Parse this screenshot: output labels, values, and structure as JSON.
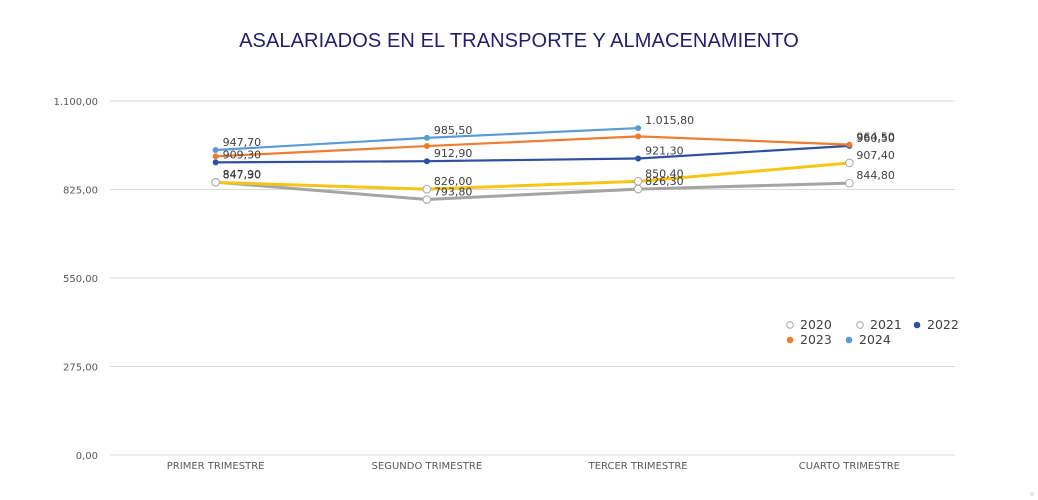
{
  "chart_data": {
    "type": "line",
    "title": "ASALARIADOS EN EL TRANSPORTE Y ALMACENAMIENTO",
    "xlabel": "",
    "ylabel": "",
    "categories": [
      "PRIMER TRIMESTRE",
      "SEGUNDO TRIMESTRE",
      "TERCER TRIMESTRE",
      "CUARTO TRIMESTRE"
    ],
    "ylim": [
      0,
      1100
    ],
    "yticks": [
      0,
      275,
      550,
      825,
      1100
    ],
    "ytick_labels": [
      "0,00",
      "275,00",
      "550,00",
      "825,00",
      "1.100,00"
    ],
    "grid": true,
    "legend_position": "right",
    "series": [
      {
        "name": "2020",
        "color": "#a5a5a5",
        "marker": "hollow-circle",
        "values": [
          847.9,
          793.8,
          826.3,
          844.8
        ],
        "labels": [
          "847,90",
          "793,80",
          "826,30",
          "844,80"
        ]
      },
      {
        "name": "2021",
        "color": "#f5c518",
        "marker": "hollow-circle",
        "values": [
          847.3,
          826.0,
          850.4,
          907.4
        ],
        "labels": [
          "847,30",
          "826,00",
          "850,40",
          "907,40"
        ]
      },
      {
        "name": "2022",
        "color": "#2f4fa0",
        "marker": "dot",
        "values": [
          909.3,
          912.9,
          921.3,
          960.5
        ],
        "labels": [
          "909,30",
          "912,90",
          "921,30",
          "960,50"
        ]
      },
      {
        "name": "2023",
        "color": "#ed7d31",
        "marker": "dot",
        "values": [
          928.0,
          960.0,
          990.0,
          964.5
        ],
        "labels": [
          "",
          "",
          "",
          "964,50"
        ]
      },
      {
        "name": "2024",
        "color": "#5b9bd5",
        "marker": "dot",
        "values": [
          947.7,
          985.5,
          1015.8,
          null
        ],
        "labels": [
          "947,70",
          "985,50",
          "1.015,80",
          ""
        ]
      }
    ]
  }
}
